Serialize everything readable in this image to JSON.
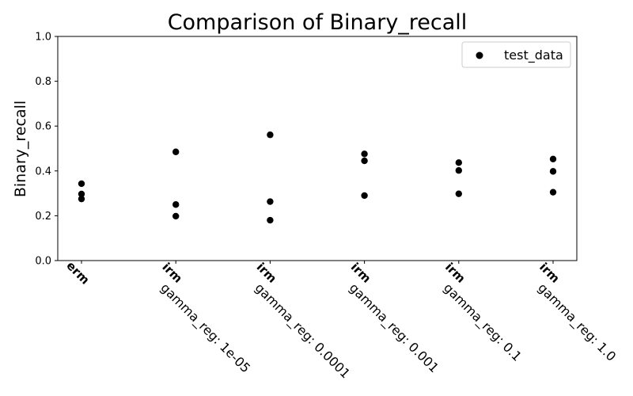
{
  "chart_data": {
    "type": "scatter",
    "title": "Comparison of Binary_recall",
    "xlabel": "",
    "ylabel": "Binary_recall",
    "ylim": [
      0.0,
      1.0
    ],
    "yticks": [
      "0.0",
      "0.2",
      "0.4",
      "0.6",
      "0.8",
      "1.0"
    ],
    "grid": false,
    "legend_position": "top-right",
    "categories": [
      {
        "method": "erm",
        "param": ""
      },
      {
        "method": "irm",
        "param": "gamma_reg: 1e-05"
      },
      {
        "method": "irm",
        "param": "gamma_reg: 0.0001"
      },
      {
        "method": "irm",
        "param": "gamma_reg: 0.001"
      },
      {
        "method": "irm",
        "param": "gamma_reg: 0.1"
      },
      {
        "method": "irm",
        "param": "gamma_reg: 1.0"
      }
    ],
    "series": [
      {
        "name": "test_data",
        "color": "#000000",
        "values": [
          [
            0.343,
            0.297,
            0.275
          ],
          [
            0.485,
            0.25,
            0.198
          ],
          [
            0.561,
            0.263,
            0.18
          ],
          [
            0.476,
            0.445,
            0.29
          ],
          [
            0.437,
            0.402,
            0.298
          ],
          [
            0.453,
            0.398,
            0.305
          ]
        ]
      }
    ]
  }
}
